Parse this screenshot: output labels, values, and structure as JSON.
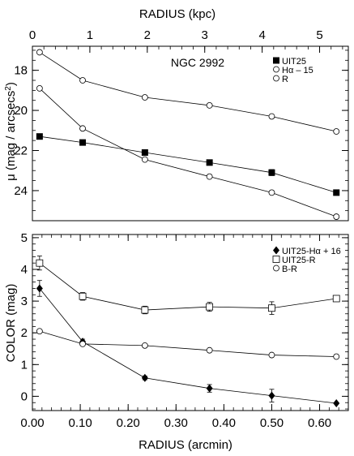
{
  "chart_data": [
    {
      "type": "line",
      "panel": "top",
      "annotation": "NGC 2992",
      "top_axis": {
        "label": "RADIUS (kpc)",
        "ticks": [
          "0",
          "1",
          "2",
          "3",
          "4",
          "5"
        ],
        "tick_values": [
          0,
          1,
          2,
          3,
          4,
          5
        ],
        "range": [
          0,
          5.5
        ]
      },
      "x_range_arcmin": [
        0,
        0.66
      ],
      "ylabel": "μ (mag / arcsecs²)",
      "ylabel_parts": {
        "main": "μ (mag / arcsecs",
        "sup": "2",
        "tail": ")"
      },
      "yticks": [
        "18",
        "20",
        "22",
        "24"
      ],
      "ytick_values": [
        18,
        20,
        22,
        24
      ],
      "ylim": [
        25.5,
        16.8
      ],
      "inverted_y": true,
      "legend_position": "top-right",
      "series": [
        {
          "name": "UIT25",
          "marker": "filled-square",
          "x": [
            0.015,
            0.105,
            0.235,
            0.37,
            0.5,
            0.635
          ],
          "y": [
            21.3,
            21.6,
            22.1,
            22.6,
            23.1,
            24.1
          ],
          "errors": [
            0.0,
            0.0,
            0.0,
            0.05,
            0.15,
            0.0
          ]
        },
        {
          "name": "Hα – 15",
          "marker": "open-circle",
          "x": [
            0.015,
            0.105,
            0.235,
            0.37,
            0.5,
            0.635
          ],
          "y": [
            18.9,
            20.9,
            22.45,
            23.3,
            24.1,
            25.3
          ],
          "errors": [
            0,
            0,
            0,
            0,
            0,
            0
          ]
        },
        {
          "name": "R",
          "marker": "open-circle",
          "x": [
            0.015,
            0.105,
            0.235,
            0.37,
            0.5,
            0.635
          ],
          "y": [
            17.1,
            18.5,
            19.35,
            19.75,
            20.3,
            21.05
          ],
          "errors": [
            0,
            0,
            0,
            0,
            0,
            0
          ]
        }
      ]
    },
    {
      "type": "line",
      "panel": "bottom",
      "xlabel": "RADIUS (arcmin)",
      "xticks": [
        "0.00",
        "0.10",
        "0.20",
        "0.30",
        "0.40",
        "0.50",
        "0.60"
      ],
      "xtick_values": [
        0.0,
        0.1,
        0.2,
        0.3,
        0.4,
        0.5,
        0.6
      ],
      "xlim": [
        0,
        0.66
      ],
      "ylabel": "COLOR (mag)",
      "yticks": [
        "0",
        "1",
        "2",
        "3",
        "4",
        "5"
      ],
      "ytick_values": [
        0,
        1,
        2,
        3,
        4,
        5
      ],
      "ylim": [
        -0.45,
        5.1
      ],
      "legend_position": "top-right",
      "series": [
        {
          "name": "UIT25-Hα + 16",
          "marker": "filled-diamond",
          "x": [
            0.015,
            0.105,
            0.235,
            0.37,
            0.5,
            0.635
          ],
          "y": [
            3.4,
            1.72,
            0.58,
            0.25,
            0.02,
            -0.22
          ],
          "errors": [
            0.25,
            0.08,
            0.06,
            0.12,
            0.2,
            0.0
          ]
        },
        {
          "name": "UIT25-R",
          "marker": "open-square",
          "x": [
            0.015,
            0.105,
            0.235,
            0.37,
            0.5,
            0.635
          ],
          "y": [
            4.2,
            3.15,
            2.72,
            2.82,
            2.78,
            3.08
          ],
          "errors": [
            0.22,
            0.12,
            0.12,
            0.14,
            0.2,
            0.05
          ]
        },
        {
          "name": "B-R",
          "marker": "open-circle",
          "x": [
            0.015,
            0.105,
            0.235,
            0.37,
            0.5,
            0.635
          ],
          "y": [
            2.05,
            1.65,
            1.6,
            1.45,
            1.3,
            1.25
          ],
          "errors": [
            0.05,
            0.03,
            0.03,
            0.03,
            0.03,
            0.0
          ]
        }
      ]
    }
  ]
}
